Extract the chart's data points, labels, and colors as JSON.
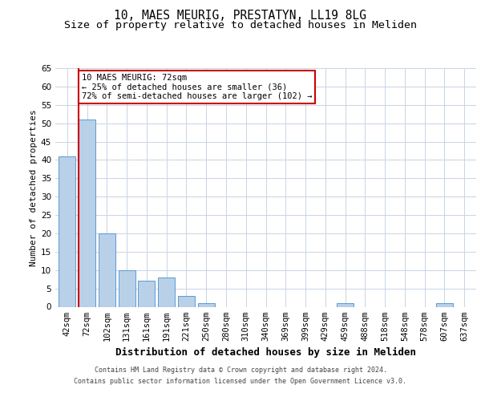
{
  "title1": "10, MAES MEURIG, PRESTATYN, LL19 8LG",
  "title2": "Size of property relative to detached houses in Meliden",
  "xlabel": "Distribution of detached houses by size in Meliden",
  "ylabel": "Number of detached properties",
  "categories": [
    "42sqm",
    "72sqm",
    "102sqm",
    "131sqm",
    "161sqm",
    "191sqm",
    "221sqm",
    "250sqm",
    "280sqm",
    "310sqm",
    "340sqm",
    "369sqm",
    "399sqm",
    "429sqm",
    "459sqm",
    "488sqm",
    "518sqm",
    "548sqm",
    "578sqm",
    "607sqm",
    "637sqm"
  ],
  "values": [
    41,
    51,
    20,
    10,
    7,
    8,
    3,
    1,
    0,
    0,
    0,
    0,
    0,
    0,
    1,
    0,
    0,
    0,
    0,
    1,
    0
  ],
  "bar_color": "#b8d0e8",
  "bar_edge_color": "#5b9bd5",
  "red_line_index": 1,
  "annotation_line1": "10 MAES MEURIG: 72sqm",
  "annotation_line2": "← 25% of detached houses are smaller (36)",
  "annotation_line3": "72% of semi-detached houses are larger (102) →",
  "ylim": [
    0,
    65
  ],
  "yticks": [
    0,
    5,
    10,
    15,
    20,
    25,
    30,
    35,
    40,
    45,
    50,
    55,
    60,
    65
  ],
  "footer1": "Contains HM Land Registry data © Crown copyright and database right 2024.",
  "footer2": "Contains public sector information licensed under the Open Government Licence v3.0.",
  "bg_color": "#ffffff",
  "grid_color": "#c8d4e4",
  "title1_fontsize": 10.5,
  "title2_fontsize": 9.5,
  "annotation_box_color": "#ffffff",
  "annotation_box_edgecolor": "#cc0000",
  "red_line_color": "#cc0000",
  "xlabel_fontsize": 9,
  "ylabel_fontsize": 8,
  "tick_fontsize": 7.5,
  "footer_fontsize": 6,
  "annot_fontsize": 7.5
}
